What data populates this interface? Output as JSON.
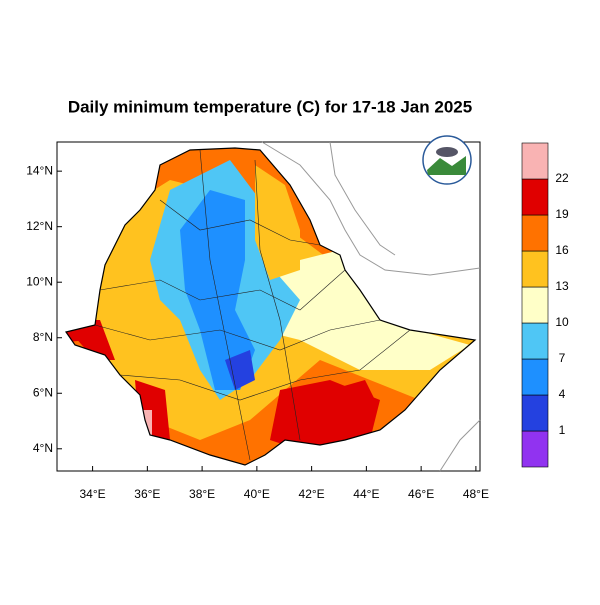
{
  "title": "Daily minimum temperature (C) for 17-18 Jan 2025",
  "map": {
    "xlim": [
      32.7,
      48.15
    ],
    "ylim": [
      3.2,
      15.05
    ],
    "xticks": [
      {
        "value": 34,
        "label": "34°E"
      },
      {
        "value": 36,
        "label": "36°E"
      },
      {
        "value": 38,
        "label": "38°E"
      },
      {
        "value": 40,
        "label": "40°E"
      },
      {
        "value": 42,
        "label": "42°E"
      },
      {
        "value": 44,
        "label": "44°E"
      },
      {
        "value": 46,
        "label": "46°E"
      },
      {
        "value": 48,
        "label": "48°E"
      }
    ],
    "yticks": [
      {
        "value": 4,
        "label": "4°N"
      },
      {
        "value": 6,
        "label": "6°N"
      },
      {
        "value": 8,
        "label": "8°N"
      },
      {
        "value": 10,
        "label": "10°N"
      },
      {
        "value": 12,
        "label": "12°N"
      },
      {
        "value": 14,
        "label": "14°N"
      }
    ]
  },
  "colorbar": {
    "levels": [
      1,
      4,
      7,
      10,
      13,
      16,
      19,
      22
    ],
    "colors": [
      "#9133f0",
      "#2441e0",
      "#1e90ff",
      "#4fc6f5",
      "#ffffc8",
      "#ffc21f",
      "#ff7200",
      "#e00000",
      "#f9b3b3"
    ]
  }
}
